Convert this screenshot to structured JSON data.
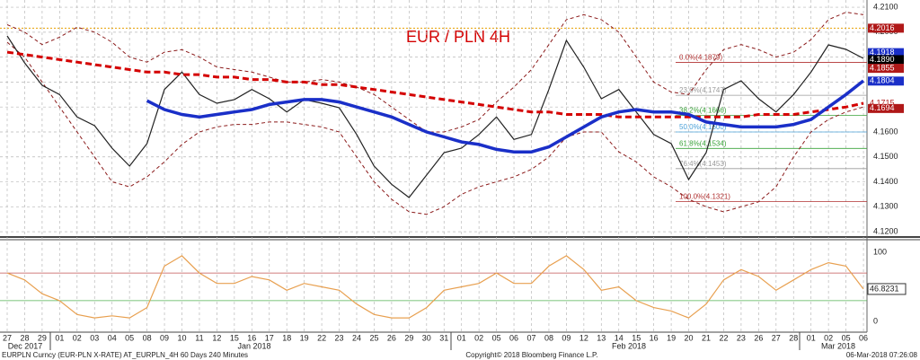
{
  "title": "EUR / PLN 4H",
  "footer": {
    "left": "EURPLN Curncy (EUR-PLN X-RATE) AT_EURPLN_4H 60 Days 240 Minutes",
    "center": "Copyright© 2018 Bloomberg Finance L.P.",
    "right": "06-Mar-2018 07:26:08"
  },
  "month_labels": [
    "Dec 2017",
    "Jan 2018",
    "Feb 2018",
    "Mar 2018"
  ],
  "chart_data": [
    {
      "type": "line",
      "categories": [
        "27",
        "28",
        "29",
        "01",
        "02",
        "03",
        "04",
        "05",
        "08",
        "09",
        "10",
        "11",
        "12",
        "15",
        "16",
        "17",
        "18",
        "19",
        "22",
        "23",
        "24",
        "25",
        "26",
        "29",
        "30",
        "31",
        "01",
        "02",
        "05",
        "06",
        "07",
        "08",
        "09",
        "12",
        "13",
        "14",
        "15",
        "16",
        "19",
        "20",
        "21",
        "22",
        "23",
        "26",
        "27",
        "28",
        "01",
        "02",
        "05",
        "06"
      ],
      "ylim": [
        4.1186,
        4.2129
      ],
      "yticks": [
        {
          "value": 4.21,
          "label": "4.2100"
        },
        {
          "value": 4.2,
          "label": "4.2000"
        },
        {
          "value": 4.19,
          "label": "4.1900"
        },
        {
          "value": 4.18,
          "label": "4.1800"
        },
        {
          "value": 4.17,
          "label": "4.1700"
        },
        {
          "value": 4.16,
          "label": "4.1600"
        },
        {
          "value": 4.15,
          "label": "4.1500"
        },
        {
          "value": 4.14,
          "label": "4.1400"
        },
        {
          "value": 4.13,
          "label": "4.1300"
        },
        {
          "value": 4.12,
          "label": "4.1200"
        }
      ],
      "grid": true,
      "series": [
        {
          "name": "Upper Band",
          "color": "#8b1a1a",
          "style": "dashed",
          "width": 1,
          "values": [
            4.203,
            4.2,
            4.195,
            4.198,
            4.202,
            4.2,
            4.196,
            4.19,
            4.188,
            4.192,
            4.193,
            4.19,
            4.186,
            4.185,
            4.184,
            4.182,
            4.18,
            4.18,
            4.181,
            4.18,
            4.178,
            4.175,
            4.17,
            4.165,
            4.16,
            4.16,
            4.162,
            4.165,
            4.172,
            4.178,
            4.185,
            4.195,
            4.205,
            4.207,
            4.205,
            4.2,
            4.19,
            4.18,
            4.176,
            4.175,
            4.185,
            4.193,
            4.195,
            4.193,
            4.19,
            4.192,
            4.197,
            4.205,
            4.208,
            4.207
          ]
        },
        {
          "name": "Lower Band",
          "color": "#8b1a1a",
          "style": "dashed",
          "width": 1,
          "values": [
            4.196,
            4.19,
            4.18,
            4.17,
            4.16,
            4.15,
            4.14,
            4.138,
            4.142,
            4.148,
            4.155,
            4.16,
            4.162,
            4.163,
            4.163,
            4.164,
            4.164,
            4.163,
            4.162,
            4.16,
            4.15,
            4.14,
            4.133,
            4.128,
            4.127,
            4.13,
            4.135,
            4.138,
            4.14,
            4.142,
            4.145,
            4.15,
            4.158,
            4.16,
            4.16,
            4.152,
            4.148,
            4.142,
            4.138,
            4.133,
            4.13,
            4.128,
            4.13,
            4.132,
            4.138,
            4.15,
            4.16,
            4.165,
            4.168,
            4.17
          ]
        },
        {
          "name": "Price",
          "color": "#222222",
          "style": "solid",
          "width": 1.2,
          "values": [
            4.1985,
            4.1877,
            4.1787,
            4.175,
            4.166,
            4.1625,
            4.1535,
            4.1463,
            4.1553,
            4.177,
            4.184,
            4.175,
            4.1715,
            4.173,
            4.177,
            4.1733,
            4.168,
            4.173,
            4.1715,
            4.1697,
            4.159,
            4.1463,
            4.139,
            4.1337,
            4.1427,
            4.1517,
            4.1535,
            4.159,
            4.166,
            4.157,
            4.159,
            4.177,
            4.1967,
            4.1859,
            4.1733,
            4.177,
            4.168,
            4.159,
            4.1553,
            4.1409,
            4.1517,
            4.177,
            4.1805,
            4.1733,
            4.168,
            4.175,
            4.184,
            4.1949,
            4.1931,
            4.1895
          ]
        },
        {
          "name": "MA 200",
          "color": "#d40000",
          "style": "dashed",
          "width": 3,
          "values": [
            4.192,
            4.191,
            4.19,
            4.189,
            4.188,
            4.187,
            4.186,
            4.185,
            4.184,
            4.184,
            4.183,
            4.183,
            4.182,
            4.182,
            4.181,
            4.181,
            4.18,
            4.18,
            4.179,
            4.179,
            4.178,
            4.177,
            4.176,
            4.175,
            4.174,
            4.173,
            4.172,
            4.171,
            4.17,
            4.169,
            4.168,
            4.168,
            4.167,
            4.167,
            4.167,
            4.166,
            4.166,
            4.166,
            4.166,
            4.166,
            4.166,
            4.166,
            4.166,
            4.167,
            4.167,
            4.167,
            4.168,
            4.169,
            4.17,
            4.1715
          ]
        },
        {
          "name": "MA 100",
          "color": "#1a2fc8",
          "style": "solid",
          "width": 3.5,
          "values": [
            null,
            null,
            null,
            null,
            null,
            null,
            null,
            null,
            4.1725,
            4.169,
            4.167,
            4.166,
            4.167,
            4.168,
            4.169,
            4.171,
            4.172,
            4.173,
            4.173,
            4.172,
            4.17,
            4.168,
            4.166,
            4.163,
            4.16,
            4.158,
            4.156,
            4.155,
            4.153,
            4.152,
            4.152,
            4.154,
            4.158,
            4.162,
            4.166,
            4.168,
            4.169,
            4.168,
            4.168,
            4.167,
            4.164,
            4.163,
            4.162,
            4.162,
            4.162,
            4.163,
            4.165,
            4.17,
            4.175,
            4.1805
          ]
        }
      ],
      "reference_line": {
        "value": 4.2016,
        "color": "#e8a000"
      },
      "fib_levels": [
        {
          "label": "0.0%(4.1879)",
          "value": 4.1879,
          "color": "#b03030"
        },
        {
          "label": "23.6%(4.1747)",
          "value": 4.1747,
          "color": "#9a9a9a"
        },
        {
          "label": "38.2%(4.1666)",
          "value": 4.1666,
          "color": "#3aa33a"
        },
        {
          "label": "50.0%(4.1600)",
          "value": 4.16,
          "color": "#4aa0d8"
        },
        {
          "label": "61.8%(4.1534)",
          "value": 4.1534,
          "color": "#3aa33a"
        },
        {
          "label": "76.4%(4.1453)",
          "value": 4.1453,
          "color": "#9a9a9a"
        },
        {
          "label": "100.0%(4.1321)",
          "value": 4.1321,
          "color": "#b03030"
        }
      ],
      "price_markers": [
        {
          "value": 4.2016,
          "label": "4.2016",
          "color": "#b01818"
        },
        {
          "value": 4.1918,
          "label": "4.1918",
          "color": "#1a2fc8"
        },
        {
          "value": 4.189,
          "label": "4.1890",
          "color": "#000000"
        },
        {
          "value": 4.1855,
          "label": "4.1855",
          "color": "#b01818"
        },
        {
          "value": 4.1804,
          "label": "4.1804",
          "color": "#1a2fc8"
        },
        {
          "value": 4.1715,
          "label": "4.1715",
          "color": "#ffffff"
        },
        {
          "value": 4.1694,
          "label": "4.1694",
          "color": "#b01818"
        }
      ]
    },
    {
      "type": "line",
      "ylim": [
        -15.6,
        116.9
      ],
      "yticks": [
        100,
        0
      ],
      "levels": [
        {
          "value": 70,
          "color": "#c05050"
        },
        {
          "value": 30,
          "color": "#50b050"
        }
      ],
      "series": [
        {
          "name": "RSI",
          "color": "#e8a050",
          "style": "solid",
          "width": 1.2,
          "values": [
            70,
            60,
            40,
            30,
            10,
            5,
            8,
            5,
            20,
            80,
            95,
            70,
            55,
            55,
            65,
            60,
            45,
            55,
            50,
            45,
            25,
            10,
            5,
            5,
            20,
            45,
            50,
            55,
            70,
            55,
            55,
            80,
            95,
            75,
            45,
            50,
            30,
            20,
            15,
            5,
            25,
            60,
            75,
            65,
            45,
            60,
            75,
            85,
            80,
            46.8231
          ]
        }
      ],
      "last_label": "46.8231"
    }
  ]
}
